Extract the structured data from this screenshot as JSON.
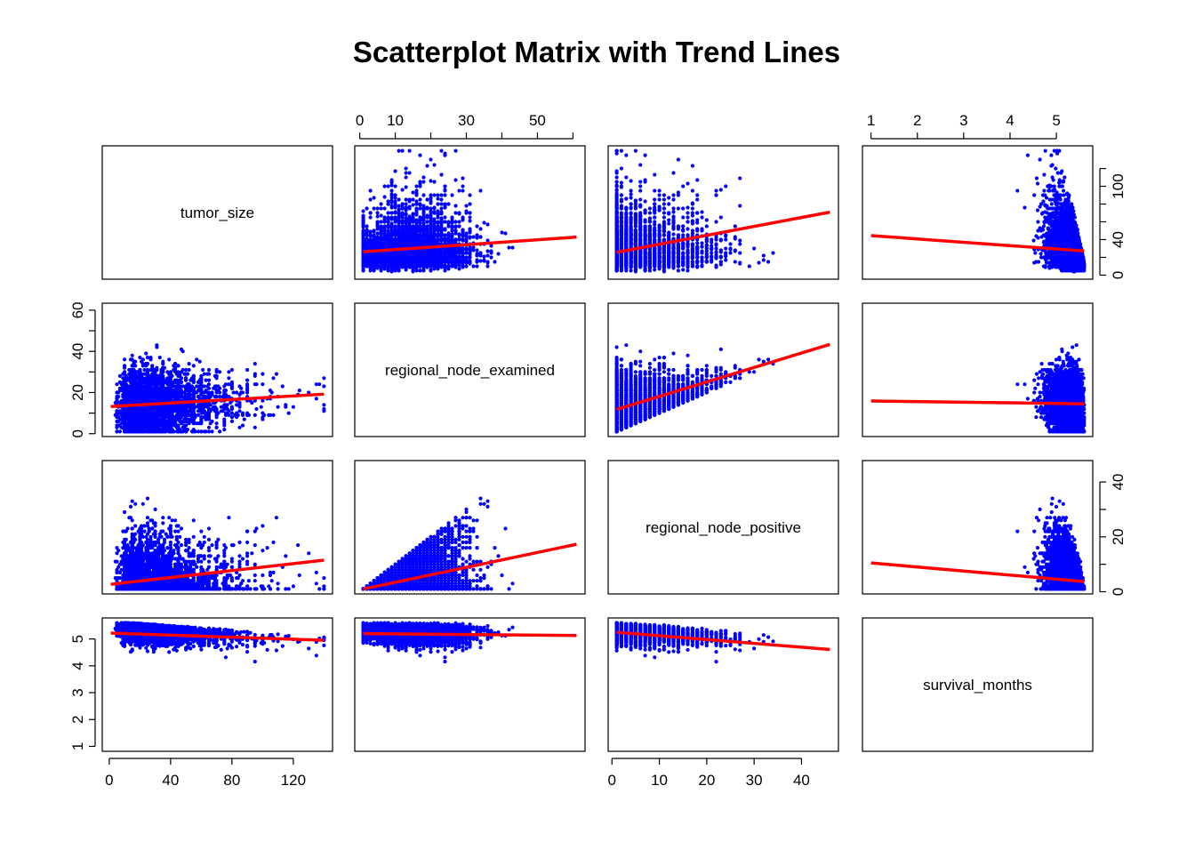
{
  "chart_data": {
    "type": "scatter",
    "title": "Scatterplot Matrix with Trend Lines",
    "variables": [
      "tumor_size",
      "regional_node_examined",
      "regional_node_positive",
      "survival_months"
    ],
    "variable_ranges": {
      "tumor_size": [
        1,
        140
      ],
      "regional_node_examined": [
        1,
        61
      ],
      "regional_node_positive": [
        1,
        46
      ],
      "survival_months": [
        1,
        5.6
      ]
    },
    "axis_ticks": {
      "tumor_size": [
        0,
        40,
        80,
        120
      ],
      "regional_node_examined": [
        0,
        10,
        20,
        30,
        40,
        50,
        60
      ],
      "regional_node_examined_labels": [
        "0",
        "10",
        "",
        "30",
        "",
        "50",
        ""
      ],
      "regional_node_positive": [
        0,
        10,
        20,
        30,
        40
      ],
      "survival_months": [
        1,
        2,
        3,
        4,
        5
      ],
      "tumor_size_right": [
        0,
        20,
        40,
        60,
        80,
        100,
        120
      ],
      "tumor_size_right_labels": [
        "0",
        "",
        "40",
        "",
        "",
        "100",
        ""
      ],
      "regional_node_positive_right": [
        0,
        10,
        20,
        30,
        40
      ],
      "regional_node_positive_right_labels": [
        "0",
        "",
        "20",
        "",
        "40"
      ],
      "regional_node_examined_left": [
        0,
        10,
        20,
        30,
        40,
        50,
        60
      ],
      "regional_node_examined_left_labels": [
        "0",
        "",
        "20",
        "",
        "40",
        "",
        "60"
      ],
      "survival_months_left": [
        1,
        2,
        3,
        4,
        5
      ]
    },
    "point_color": "#0000ff",
    "trend_line_color": "#ff0000",
    "trend_lines": {
      "regional_node_examined|tumor_size": [
        [
          1,
          26.3
        ],
        [
          61,
          42.8
        ]
      ],
      "regional_node_positive|tumor_size": [
        [
          1,
          25.7
        ],
        [
          46,
          70.9
        ]
      ],
      "survival_months|tumor_size": [
        [
          1,
          44.5
        ],
        [
          5.6,
          27.2
        ]
      ],
      "tumor_size|regional_node_examined": [
        [
          1,
          13.2
        ],
        [
          140,
          19.2
        ]
      ],
      "regional_node_positive|regional_node_examined": [
        [
          1,
          11.8
        ],
        [
          46,
          43.4
        ]
      ],
      "survival_months|regional_node_examined": [
        [
          1,
          15.9
        ],
        [
          5.6,
          14.5
        ]
      ],
      "tumor_size|regional_node_positive": [
        [
          1,
          2.7
        ],
        [
          140,
          11.5
        ]
      ],
      "regional_node_examined|regional_node_positive": [
        [
          1,
          1
        ],
        [
          61,
          17.3
        ]
      ],
      "survival_months|regional_node_positive": [
        [
          1,
          10.5
        ],
        [
          5.6,
          3.7
        ]
      ],
      "tumor_size|survival_months": [
        [
          1,
          5.22
        ],
        [
          140,
          4.95
        ]
      ],
      "regional_node_examined|survival_months": [
        [
          1,
          5.2
        ],
        [
          61,
          5.13
        ]
      ],
      "regional_node_positive|survival_months": [
        [
          1,
          5.25
        ],
        [
          46,
          4.61
        ]
      ]
    },
    "approx_point_count": 4000
  }
}
